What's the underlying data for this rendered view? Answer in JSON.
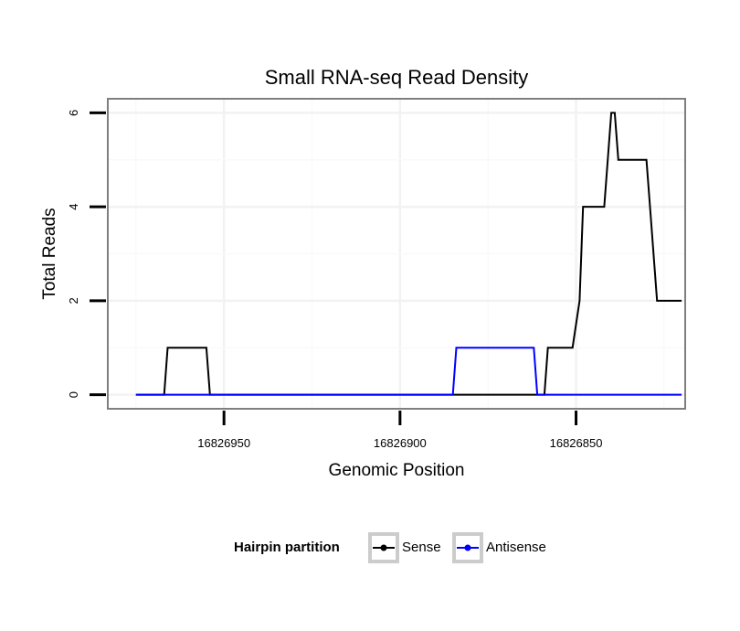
{
  "chart_data": {
    "type": "line",
    "title": "Small RNA-seq Read Density",
    "xlabel": "Genomic Position",
    "ylabel": "Total Reads",
    "xlim": [
      16826983,
      16826819
    ],
    "ylim": [
      -0.3,
      6.3
    ],
    "x_reversed": true,
    "x_ticks": [
      16826950,
      16826900,
      16826850
    ],
    "x_tick_labels": [
      "16826950",
      "16826900",
      "16826850"
    ],
    "y_ticks": [
      0,
      2,
      4,
      6
    ],
    "y_tick_labels": [
      "0",
      "2",
      "4",
      "6"
    ],
    "grid": true,
    "legend": {
      "title": "Hairpin partition",
      "position": "bottom",
      "entries": [
        "Sense",
        "Antisense"
      ]
    },
    "series": [
      {
        "name": "Sense",
        "color": "#000000",
        "x": [
          16826975,
          16826967,
          16826966,
          16826955,
          16826954,
          16826859,
          16826858,
          16826851,
          16826849,
          16826848,
          16826847,
          16826842,
          16826840,
          16826839,
          16826838,
          16826837,
          16826836,
          16826830,
          16826829,
          16826827,
          16826826,
          16826823,
          16826822,
          16826820
        ],
        "values": [
          0,
          0,
          1,
          1,
          0,
          0,
          1,
          1,
          2,
          4,
          4,
          4,
          6,
          6,
          5,
          5,
          5,
          5,
          4,
          2,
          2,
          2,
          2,
          2
        ]
      },
      {
        "name": "Antisense",
        "color": "#0000ff",
        "x": [
          16826975,
          16826885,
          16826884,
          16826862,
          16826861,
          16826820
        ],
        "values": [
          0,
          0,
          1,
          1,
          0,
          0
        ]
      }
    ]
  }
}
